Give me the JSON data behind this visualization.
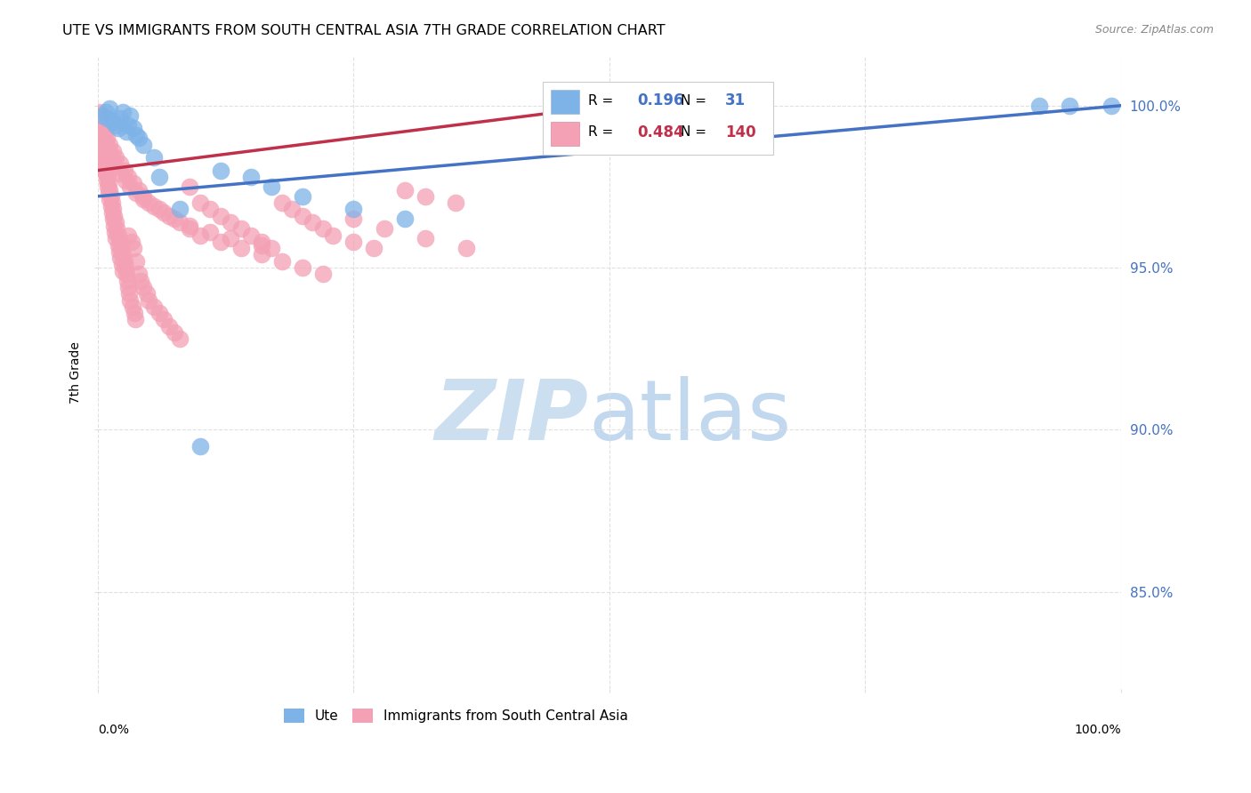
{
  "title": "UTE VS IMMIGRANTS FROM SOUTH CENTRAL ASIA 7TH GRADE CORRELATION CHART",
  "source": "Source: ZipAtlas.com",
  "ylabel": "7th Grade",
  "ylabel_right_labels": [
    "100.0%",
    "95.0%",
    "90.0%",
    "85.0%"
  ],
  "ylabel_right_values": [
    1.0,
    0.95,
    0.9,
    0.85
  ],
  "xlim": [
    0.0,
    1.0
  ],
  "ylim": [
    0.82,
    1.015
  ],
  "legend_blue_r": "0.196",
  "legend_blue_n": "31",
  "legend_pink_r": "0.484",
  "legend_pink_n": "140",
  "blue_color": "#7EB3E8",
  "pink_color": "#F4A0B5",
  "trendline_blue": "#4472C4",
  "trendline_pink": "#C0304A",
  "background_color": "#FFFFFF",
  "grid_color": "#DDDDDD",
  "blue_scatter_x": [
    0.005,
    0.008,
    0.01,
    0.012,
    0.015,
    0.018,
    0.02,
    0.022,
    0.025,
    0.028,
    0.03,
    0.032,
    0.035,
    0.038,
    0.04,
    0.045,
    0.055,
    0.06,
    0.08,
    0.1,
    0.12,
    0.15,
    0.17,
    0.2,
    0.25,
    0.3,
    0.6,
    0.65,
    0.92,
    0.95,
    0.99
  ],
  "blue_scatter_y": [
    0.997,
    0.998,
    0.996,
    0.999,
    0.995,
    0.994,
    0.993,
    0.996,
    0.998,
    0.992,
    0.994,
    0.997,
    0.993,
    0.991,
    0.99,
    0.988,
    0.984,
    0.978,
    0.968,
    0.895,
    0.98,
    0.978,
    0.975,
    0.972,
    0.968,
    0.965,
    1.0,
    1.0,
    1.0,
    1.0,
    1.0
  ],
  "pink_scatter_x": [
    0.001,
    0.001,
    0.002,
    0.002,
    0.003,
    0.003,
    0.004,
    0.004,
    0.005,
    0.005,
    0.006,
    0.006,
    0.007,
    0.007,
    0.008,
    0.008,
    0.009,
    0.009,
    0.01,
    0.01,
    0.011,
    0.011,
    0.012,
    0.012,
    0.013,
    0.013,
    0.014,
    0.014,
    0.015,
    0.015,
    0.016,
    0.016,
    0.017,
    0.018,
    0.018,
    0.019,
    0.02,
    0.02,
    0.021,
    0.022,
    0.022,
    0.023,
    0.024,
    0.025,
    0.025,
    0.026,
    0.027,
    0.028,
    0.029,
    0.03,
    0.03,
    0.031,
    0.032,
    0.033,
    0.034,
    0.035,
    0.036,
    0.037,
    0.038,
    0.04,
    0.042,
    0.045,
    0.048,
    0.05,
    0.055,
    0.06,
    0.065,
    0.07,
    0.075,
    0.08,
    0.09,
    0.1,
    0.11,
    0.12,
    0.13,
    0.14,
    0.15,
    0.16,
    0.17,
    0.18,
    0.19,
    0.2,
    0.21,
    0.22,
    0.23,
    0.25,
    0.27,
    0.3,
    0.32,
    0.35,
    0.001,
    0.003,
    0.005,
    0.007,
    0.009,
    0.012,
    0.015,
    0.018,
    0.022,
    0.026,
    0.03,
    0.035,
    0.04,
    0.045,
    0.05,
    0.06,
    0.07,
    0.08,
    0.09,
    0.1,
    0.12,
    0.14,
    0.16,
    0.18,
    0.2,
    0.22,
    0.25,
    0.28,
    0.32,
    0.36,
    0.002,
    0.004,
    0.006,
    0.008,
    0.01,
    0.012,
    0.015,
    0.018,
    0.022,
    0.027,
    0.032,
    0.038,
    0.045,
    0.055,
    0.065,
    0.075,
    0.09,
    0.11,
    0.13,
    0.16
  ],
  "pink_scatter_y": [
    0.993,
    0.99,
    0.992,
    0.988,
    0.989,
    0.986,
    0.987,
    0.984,
    0.985,
    0.982,
    0.983,
    0.98,
    0.981,
    0.984,
    0.979,
    0.982,
    0.977,
    0.98,
    0.975,
    0.978,
    0.973,
    0.976,
    0.971,
    0.974,
    0.969,
    0.972,
    0.967,
    0.97,
    0.965,
    0.968,
    0.963,
    0.966,
    0.961,
    0.964,
    0.959,
    0.962,
    0.957,
    0.96,
    0.955,
    0.958,
    0.953,
    0.956,
    0.951,
    0.954,
    0.949,
    0.952,
    0.95,
    0.948,
    0.946,
    0.944,
    0.96,
    0.942,
    0.94,
    0.958,
    0.938,
    0.956,
    0.936,
    0.934,
    0.952,
    0.948,
    0.946,
    0.944,
    0.942,
    0.94,
    0.938,
    0.936,
    0.934,
    0.932,
    0.93,
    0.928,
    0.975,
    0.97,
    0.968,
    0.966,
    0.964,
    0.962,
    0.96,
    0.958,
    0.956,
    0.97,
    0.968,
    0.966,
    0.964,
    0.962,
    0.96,
    0.958,
    0.956,
    0.974,
    0.972,
    0.97,
    0.998,
    0.996,
    0.994,
    0.992,
    0.99,
    0.988,
    0.986,
    0.984,
    0.982,
    0.98,
    0.978,
    0.976,
    0.974,
    0.972,
    0.97,
    0.968,
    0.966,
    0.964,
    0.962,
    0.96,
    0.958,
    0.956,
    0.954,
    0.952,
    0.95,
    0.948,
    0.965,
    0.962,
    0.959,
    0.956,
    0.995,
    0.993,
    0.991,
    0.989,
    0.987,
    0.985,
    0.983,
    0.981,
    0.979,
    0.977,
    0.975,
    0.973,
    0.971,
    0.969,
    0.967,
    0.965,
    0.963,
    0.961,
    0.959,
    0.957
  ]
}
